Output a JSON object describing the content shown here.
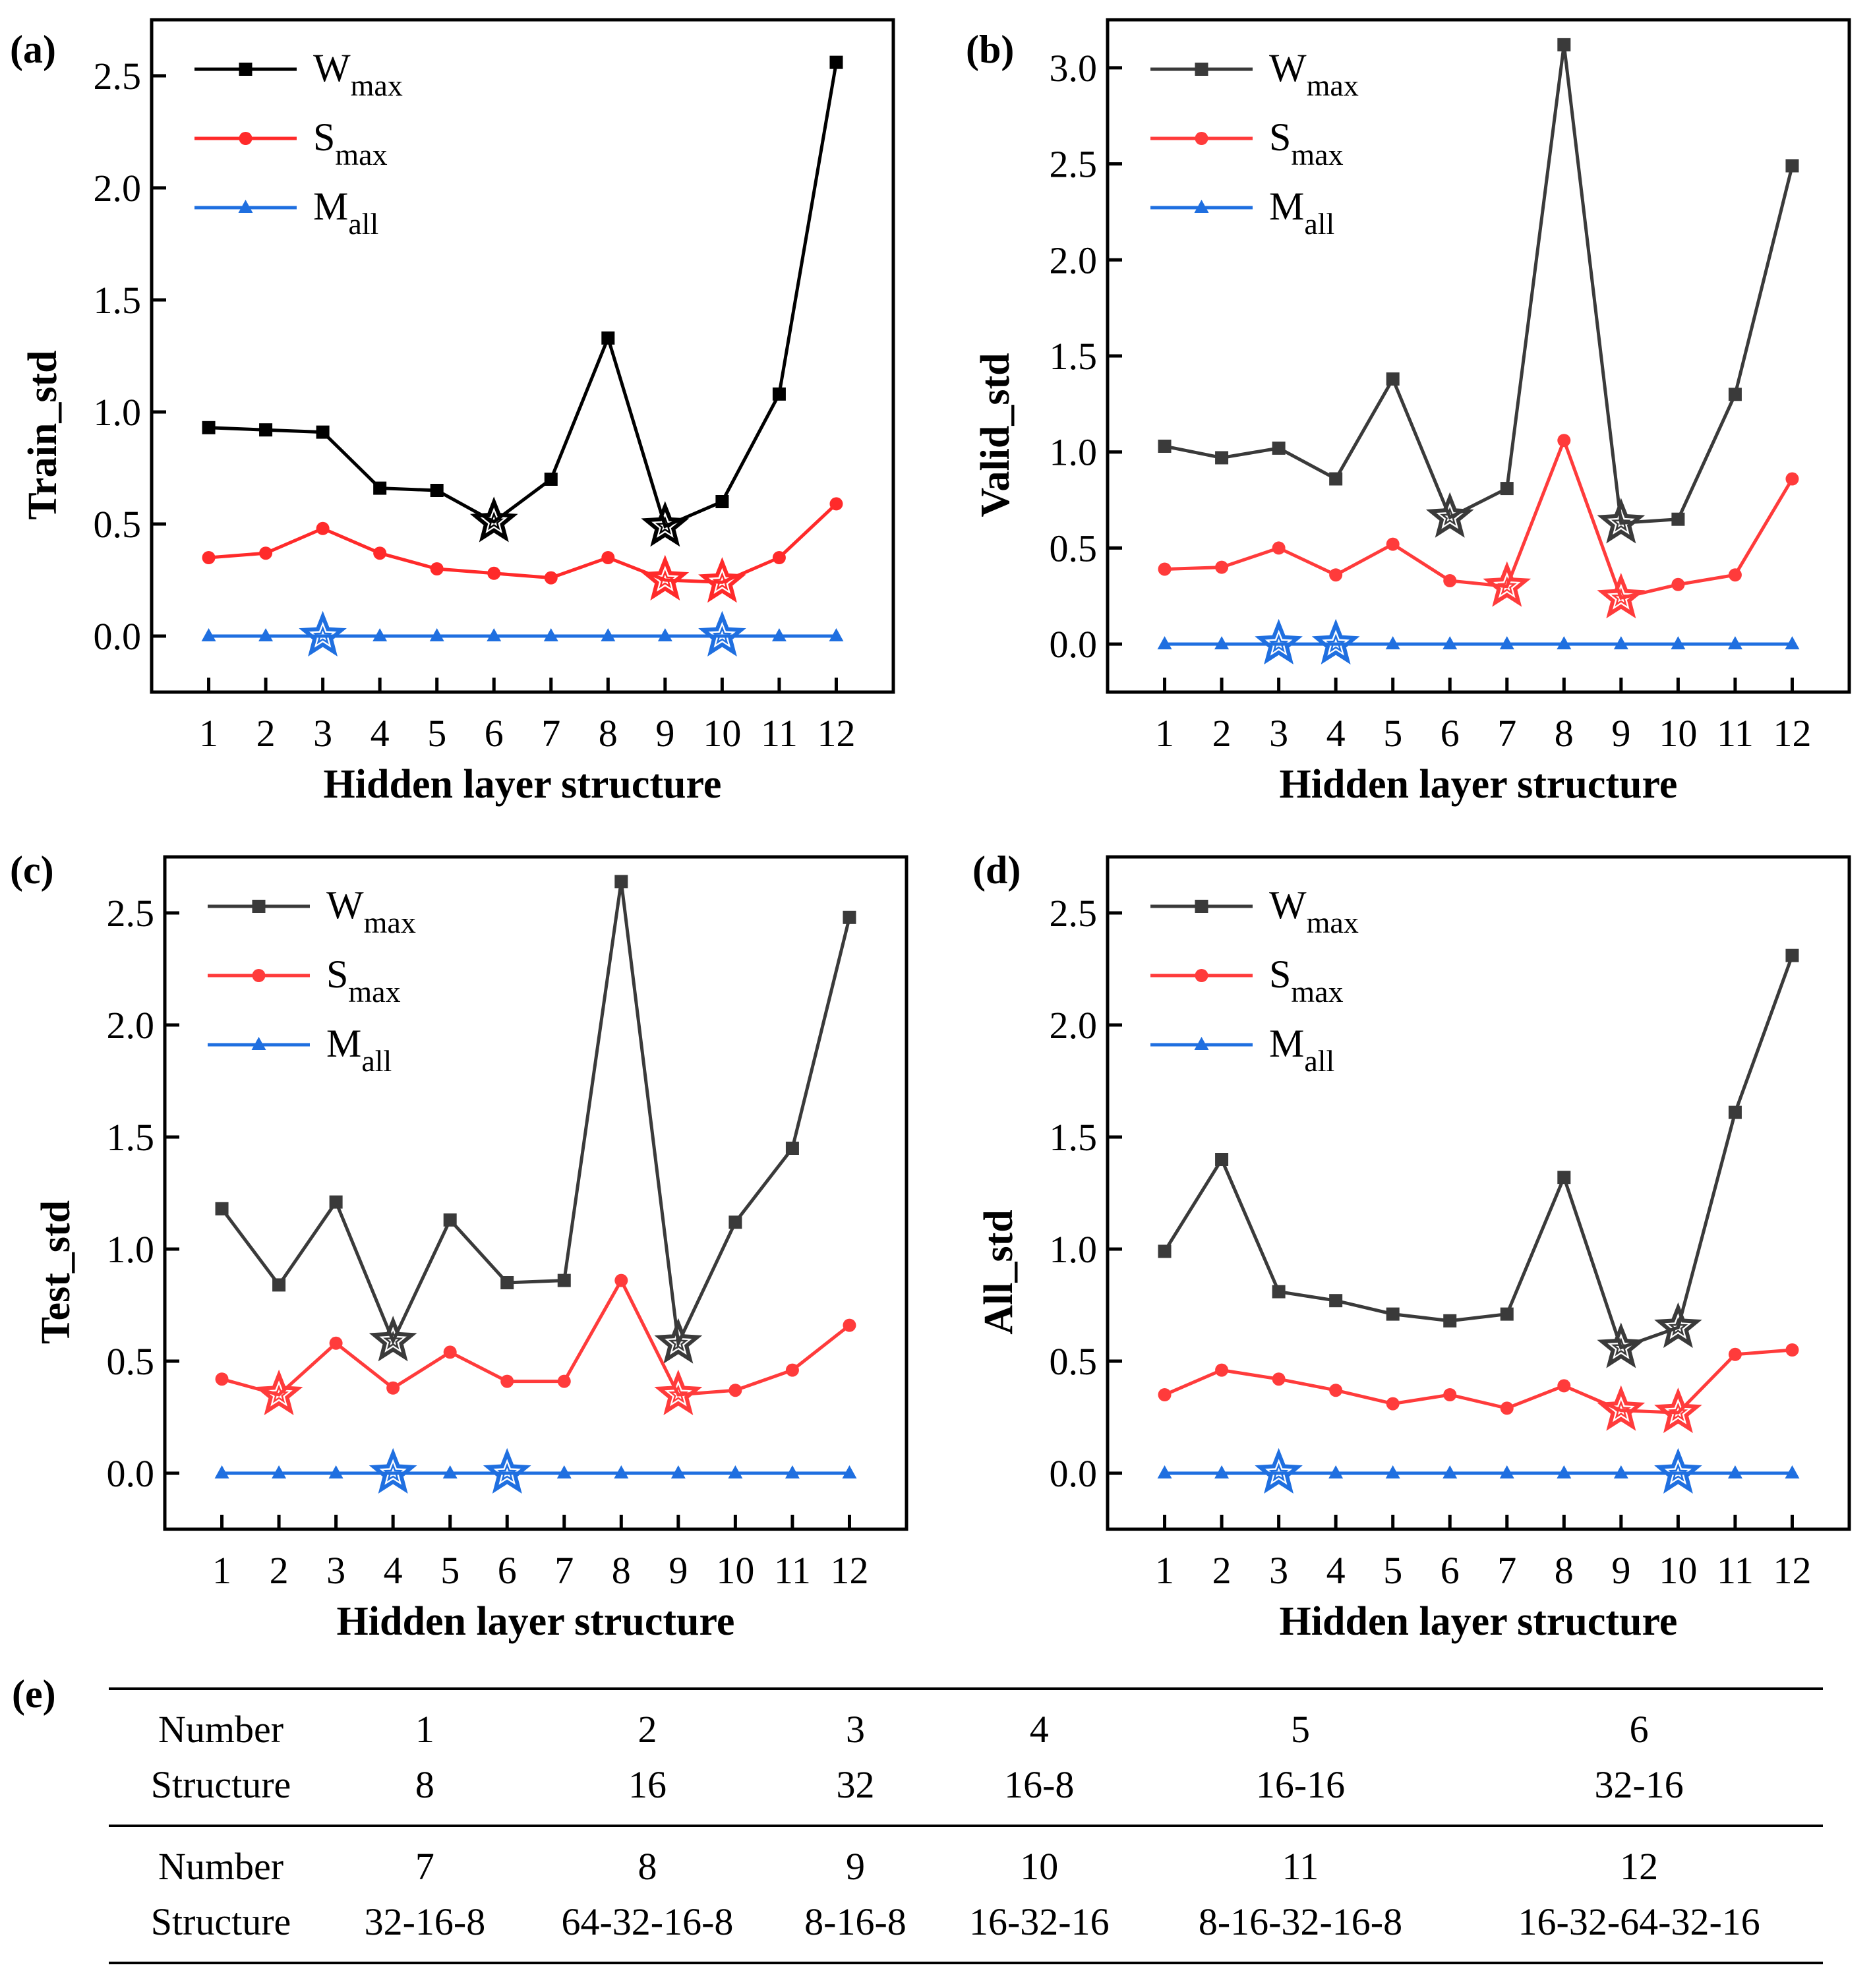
{
  "chart_data": [
    {
      "type": "line",
      "panel": "(a)",
      "xlabel": "Hidden layer structure",
      "ylabel": "Train_std",
      "x": [
        1,
        2,
        3,
        4,
        5,
        6,
        7,
        8,
        9,
        10,
        11,
        12
      ],
      "ylim": [
        -0.25,
        2.75
      ],
      "yticks": [
        0.0,
        0.5,
        1.0,
        1.5,
        2.0,
        2.5
      ],
      "legend_position": "top-left",
      "series": [
        {
          "name": "W",
          "sub": "max",
          "color": "#000000",
          "marker": "square",
          "values": [
            0.93,
            0.92,
            0.91,
            0.66,
            0.65,
            0.51,
            0.7,
            1.33,
            0.49,
            0.6,
            1.08,
            2.56
          ],
          "highlight_x": [
            6,
            9
          ]
        },
        {
          "name": "S",
          "sub": "max",
          "color": "#ff2a2a",
          "marker": "circle",
          "values": [
            0.35,
            0.37,
            0.48,
            0.37,
            0.3,
            0.28,
            0.26,
            0.35,
            0.25,
            0.24,
            0.35,
            0.59
          ],
          "highlight_x": [
            9,
            10
          ]
        },
        {
          "name": "M",
          "sub": "all",
          "color": "#1f6fe0",
          "marker": "triangle",
          "values": [
            0,
            0,
            0,
            0,
            0,
            0,
            0,
            0,
            0,
            0,
            0,
            0
          ],
          "highlight_x": [
            3,
            10
          ]
        }
      ]
    },
    {
      "type": "line",
      "panel": "(b)",
      "xlabel": "Hidden layer structure",
      "ylabel": "Valid_std",
      "x": [
        1,
        2,
        3,
        4,
        5,
        6,
        7,
        8,
        9,
        10,
        11,
        12
      ],
      "ylim": [
        -0.25,
        3.25
      ],
      "yticks": [
        0.0,
        0.5,
        1.0,
        1.5,
        2.0,
        2.5,
        3.0
      ],
      "legend_position": "top-left",
      "series": [
        {
          "name": "W",
          "sub": "max",
          "color": "#3a3a3a",
          "marker": "square",
          "values": [
            1.03,
            0.97,
            1.02,
            0.86,
            1.38,
            0.66,
            0.81,
            3.12,
            0.63,
            0.65,
            1.3,
            2.49
          ],
          "highlight_x": [
            6,
            9
          ]
        },
        {
          "name": "S",
          "sub": "max",
          "color": "#ff3b3b",
          "marker": "circle",
          "values": [
            0.39,
            0.4,
            0.5,
            0.36,
            0.52,
            0.33,
            0.3,
            1.06,
            0.24,
            0.31,
            0.36,
            0.86
          ],
          "highlight_x": [
            7,
            9
          ]
        },
        {
          "name": "M",
          "sub": "all",
          "color": "#1f6fe0",
          "marker": "triangle",
          "values": [
            0,
            0,
            0,
            0,
            0,
            0,
            0,
            0,
            0,
            0,
            0,
            0
          ],
          "highlight_x": [
            3,
            4
          ]
        }
      ]
    },
    {
      "type": "line",
      "panel": "(c)",
      "xlabel": "Hidden layer structure",
      "ylabel": "Test_std",
      "x": [
        1,
        2,
        3,
        4,
        5,
        6,
        7,
        8,
        9,
        10,
        11,
        12
      ],
      "ylim": [
        -0.25,
        2.75
      ],
      "yticks": [
        0.0,
        0.5,
        1.0,
        1.5,
        2.0,
        2.5
      ],
      "legend_position": "top-left",
      "series": [
        {
          "name": "W",
          "sub": "max",
          "color": "#3a3a3a",
          "marker": "square",
          "values": [
            1.18,
            0.84,
            1.21,
            0.59,
            1.13,
            0.85,
            0.86,
            2.64,
            0.58,
            1.12,
            1.45,
            2.48
          ],
          "highlight_x": [
            4,
            9
          ]
        },
        {
          "name": "S",
          "sub": "max",
          "color": "#ff3b3b",
          "marker": "circle",
          "values": [
            0.42,
            0.35,
            0.58,
            0.38,
            0.54,
            0.41,
            0.41,
            0.86,
            0.35,
            0.37,
            0.46,
            0.66
          ],
          "highlight_x": [
            2,
            9
          ]
        },
        {
          "name": "M",
          "sub": "all",
          "color": "#1f6fe0",
          "marker": "triangle",
          "values": [
            0,
            0,
            0,
            0,
            0,
            0,
            0,
            0,
            0,
            0,
            0,
            0
          ],
          "highlight_x": [
            4,
            6
          ]
        }
      ]
    },
    {
      "type": "line",
      "panel": "(d)",
      "xlabel": "Hidden layer structure",
      "ylabel": "All_std",
      "x": [
        1,
        2,
        3,
        4,
        5,
        6,
        7,
        8,
        9,
        10,
        11,
        12
      ],
      "ylim": [
        -0.25,
        2.75
      ],
      "yticks": [
        0.0,
        0.5,
        1.0,
        1.5,
        2.0,
        2.5
      ],
      "legend_position": "top-left",
      "series": [
        {
          "name": "W",
          "sub": "max",
          "color": "#3a3a3a",
          "marker": "square",
          "values": [
            0.99,
            1.4,
            0.81,
            0.77,
            0.71,
            0.68,
            0.71,
            1.32,
            0.56,
            0.65,
            1.61,
            2.31
          ],
          "highlight_x": [
            9,
            10
          ]
        },
        {
          "name": "S",
          "sub": "max",
          "color": "#ff3b3b",
          "marker": "circle",
          "values": [
            0.35,
            0.46,
            0.42,
            0.37,
            0.31,
            0.35,
            0.29,
            0.39,
            0.28,
            0.27,
            0.53,
            0.55
          ],
          "highlight_x": [
            9,
            10
          ]
        },
        {
          "name": "M",
          "sub": "all",
          "color": "#1f6fe0",
          "marker": "triangle",
          "values": [
            0,
            0,
            0,
            0,
            0,
            0,
            0,
            0,
            0,
            0,
            0,
            0
          ],
          "highlight_x": [
            3,
            10
          ]
        }
      ]
    }
  ],
  "table": {
    "label": "(e)",
    "number_header": "Number",
    "structure_header": "Structure",
    "groups": [
      {
        "numbers": [
          "1",
          "2",
          "3",
          "4",
          "5",
          "6"
        ],
        "structures": [
          "8",
          "16",
          "32",
          "16-8",
          "16-16",
          "32-16"
        ]
      },
      {
        "numbers": [
          "7",
          "8",
          "9",
          "10",
          "11",
          "12"
        ],
        "structures": [
          "32-16-8",
          "64-32-16-8",
          "8-16-8",
          "16-32-16",
          "8-16-32-16-8",
          "16-32-64-32-16"
        ]
      }
    ]
  }
}
